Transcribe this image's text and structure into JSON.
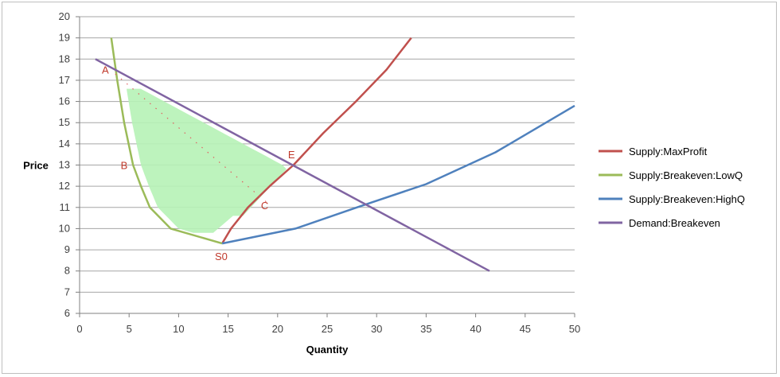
{
  "chart_data": {
    "type": "line",
    "title": "",
    "xlabel": "Quantity",
    "ylabel": "Price",
    "xlim": [
      0,
      50
    ],
    "ylim": [
      6,
      20
    ],
    "xticks": [
      0,
      5,
      10,
      15,
      20,
      25,
      30,
      35,
      40,
      45,
      50
    ],
    "yticks": [
      6,
      7,
      8,
      9,
      10,
      11,
      12,
      13,
      14,
      15,
      16,
      17,
      18,
      19,
      20
    ],
    "grid": "horizontal",
    "legend_position": "right",
    "series": [
      {
        "name": "Supply:MaxProfit",
        "color": "#c0504d",
        "x": [
          14.4,
          15.3,
          17.0,
          19.2,
          21.6,
          24.6,
          27.9,
          31.0,
          33.5
        ],
        "y": [
          9.3,
          10.0,
          11.0,
          12.0,
          13.0,
          14.5,
          16.0,
          17.5,
          19.0
        ]
      },
      {
        "name": "Supply:Breakeven:LowQ",
        "color": "#9bbb59",
        "x": [
          3.2,
          3.8,
          4.5,
          5.4,
          6.2,
          7.1,
          9.2,
          14.4
        ],
        "y": [
          19.0,
          17.0,
          15.0,
          13.0,
          12.0,
          11.0,
          10.0,
          9.3
        ],
        "fill_region": true,
        "fill_color": "#b6f2b6"
      },
      {
        "name": "Supply:Breakeven:HighQ",
        "color": "#4f81bd",
        "x": [
          14.4,
          21.8,
          28.0,
          35.0,
          42.0,
          50.0
        ],
        "y": [
          9.3,
          10.0,
          11.0,
          12.1,
          13.6,
          15.8
        ]
      },
      {
        "name": "Demand:Breakeven",
        "color": "#8064a2",
        "x": [
          1.6,
          41.4
        ],
        "y": [
          18.0,
          8.0
        ]
      }
    ],
    "dotted_line": {
      "color": "#e06060",
      "x": [
        3.6,
        19.0
      ],
      "y": [
        17.3,
        11.2
      ]
    },
    "annotations": [
      {
        "text": "A",
        "x": 2.6,
        "y": 17.5
      },
      {
        "text": "B",
        "x": 4.5,
        "y": 13.0
      },
      {
        "text": "E",
        "x": 21.4,
        "y": 13.5
      },
      {
        "text": "C",
        "x": 18.7,
        "y": 11.1
      },
      {
        "text": "S0",
        "x": 14.3,
        "y": 8.7
      }
    ]
  }
}
